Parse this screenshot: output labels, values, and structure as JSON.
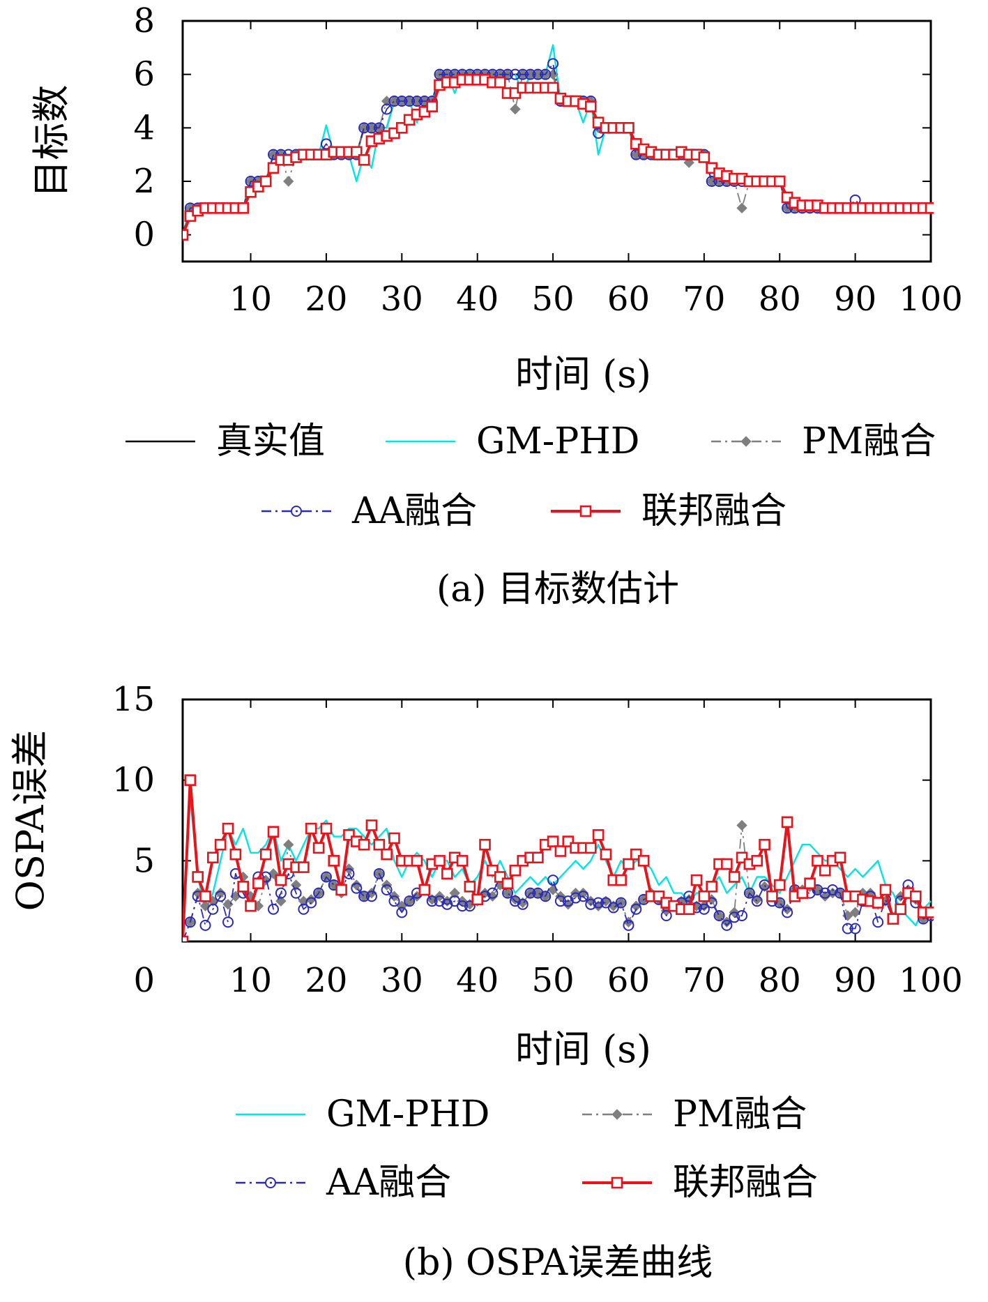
{
  "colors": {
    "true_value": "#000000",
    "gmphd": "#00e5e5",
    "pm": "#7f7f7f",
    "aa": "#2a2ab8",
    "federated": "#e8141c",
    "frame": "#000000"
  },
  "chart_data": [
    {
      "id": "a",
      "type": "line",
      "caption": "(a) 目标数估计",
      "xlabel": "时间 (s)",
      "ylabel": "目标数",
      "xlim": [
        1,
        100
      ],
      "ylim": [
        -1,
        8
      ],
      "xticks": [
        10,
        20,
        30,
        40,
        50,
        60,
        70,
        80,
        90,
        100
      ],
      "yticks": [
        0,
        2,
        4,
        6,
        8
      ],
      "grid": false,
      "legend": {
        "placement": "below",
        "entries": [
          "真实值",
          "GM-PHD",
          "PM融合",
          "AA融合",
          "联邦融合"
        ]
      },
      "x": [
        1,
        2,
        3,
        4,
        5,
        6,
        7,
        8,
        9,
        10,
        11,
        12,
        13,
        14,
        15,
        16,
        17,
        18,
        19,
        20,
        21,
        22,
        23,
        24,
        25,
        26,
        27,
        28,
        29,
        30,
        31,
        32,
        33,
        34,
        35,
        36,
        37,
        38,
        39,
        40,
        41,
        42,
        43,
        44,
        45,
        46,
        47,
        48,
        49,
        50,
        51,
        52,
        53,
        54,
        55,
        56,
        57,
        58,
        59,
        60,
        61,
        62,
        63,
        64,
        65,
        66,
        67,
        68,
        69,
        70,
        71,
        72,
        73,
        74,
        75,
        76,
        77,
        78,
        79,
        80,
        81,
        82,
        83,
        84,
        85,
        86,
        87,
        88,
        89,
        90,
        91,
        92,
        93,
        94,
        95,
        96,
        97,
        98,
        99,
        100
      ],
      "series": [
        {
          "name": "真实值",
          "style": "solid",
          "marker": "none",
          "values": [
            0,
            1,
            1,
            1,
            1,
            1,
            1,
            1,
            1,
            2,
            2,
            2,
            3,
            3,
            3,
            3,
            3,
            3,
            3,
            3,
            3,
            3,
            3,
            3,
            4,
            4,
            4,
            4,
            5,
            5,
            5,
            5,
            5,
            5,
            6,
            6,
            6,
            6,
            6,
            6,
            6,
            6,
            6,
            6,
            6,
            6,
            6,
            6,
            6,
            6,
            5,
            5,
            5,
            5,
            5,
            4,
            4,
            4,
            4,
            4,
            3,
            3,
            3,
            3,
            3,
            3,
            3,
            3,
            3,
            3,
            2,
            2,
            2,
            2,
            2,
            2,
            2,
            2,
            2,
            2,
            1,
            1,
            1,
            1,
            1,
            1,
            1,
            1,
            1,
            1,
            1,
            1,
            1,
            1,
            1,
            1,
            1,
            1,
            1,
            1
          ]
        },
        {
          "name": "GM-PHD",
          "style": "solid",
          "marker": "none",
          "values": [
            0,
            1,
            1,
            1,
            1,
            1,
            1,
            1,
            1,
            2,
            2,
            2,
            3,
            3,
            3,
            3,
            3,
            3,
            3,
            4.1,
            3,
            3,
            3,
            2,
            3,
            2.5,
            4,
            4,
            5,
            5,
            5,
            4.2,
            5,
            5,
            6,
            6,
            5.3,
            6,
            6,
            6,
            6,
            6,
            6,
            6,
            6,
            5.3,
            6,
            6,
            6,
            7.1,
            5,
            5,
            5,
            4.2,
            5,
            3,
            4,
            4,
            4,
            4,
            3,
            3,
            3,
            3,
            3,
            3,
            3,
            3,
            3,
            3,
            2,
            2,
            2,
            2,
            2,
            2,
            2,
            2,
            2,
            2,
            1,
            1,
            1,
            1,
            1,
            1,
            1,
            1,
            1,
            1,
            1,
            1,
            1,
            1,
            1,
            1,
            1,
            1,
            1,
            1
          ]
        },
        {
          "name": "PM融合",
          "style": "dashdot",
          "marker": "diamond",
          "values": [
            0,
            1,
            1,
            1,
            1,
            1,
            1,
            1,
            1,
            2,
            2,
            2,
            3,
            3,
            2,
            3,
            3,
            3,
            3,
            3,
            3,
            3,
            3,
            3,
            4,
            4,
            4,
            5,
            5,
            5,
            5,
            5,
            5,
            5,
            6,
            6,
            6,
            6,
            6,
            6,
            6,
            6,
            6,
            6,
            4.7,
            6,
            6,
            6,
            6,
            6,
            5,
            5,
            5,
            5,
            5,
            4,
            4,
            4,
            4,
            4,
            3,
            3,
            3,
            3,
            3,
            3,
            3,
            2.7,
            3,
            3,
            2,
            2,
            2,
            2,
            1,
            2,
            2,
            2,
            2,
            2,
            1,
            1,
            1,
            1,
            1,
            1,
            1,
            1,
            1,
            1,
            1,
            1,
            1,
            1,
            1,
            1,
            1,
            1,
            1,
            1
          ]
        },
        {
          "name": "AA融合",
          "style": "dashdot",
          "marker": "circle",
          "values": [
            0,
            1,
            1,
            1,
            1,
            1,
            1,
            1,
            1,
            2,
            2,
            2,
            3,
            3,
            3,
            3,
            3,
            3,
            3,
            3.4,
            3,
            3,
            3,
            3,
            4,
            4,
            4,
            4.7,
            5,
            5,
            5,
            5,
            5,
            5,
            6,
            6,
            6,
            6,
            6,
            6,
            6,
            6,
            6,
            6,
            6,
            6,
            6,
            6,
            6,
            6.4,
            5,
            5,
            5,
            5,
            5,
            3.8,
            4,
            4,
            4,
            4,
            3,
            3,
            3,
            3,
            3,
            3,
            3,
            3,
            3,
            3,
            2,
            2,
            2,
            2,
            2,
            2,
            2,
            2,
            2,
            2,
            1,
            1,
            1,
            1,
            1,
            1,
            1,
            1,
            1,
            1.3,
            1,
            1,
            1,
            1,
            1,
            1,
            1,
            1,
            1,
            1
          ]
        },
        {
          "name": "联邦融合",
          "style": "solid",
          "marker": "square",
          "values": [
            0,
            0.7,
            0.9,
            1,
            1,
            1,
            1,
            1,
            1,
            1.6,
            1.8,
            2,
            2.5,
            2.8,
            2.8,
            2.9,
            3,
            3,
            3,
            3,
            3.1,
            3.1,
            3.1,
            3.1,
            2.8,
            3.5,
            3.6,
            3.7,
            3.8,
            4,
            4.3,
            4.5,
            4.6,
            4.8,
            5.6,
            5.7,
            5.7,
            5.8,
            5.8,
            5.8,
            5.8,
            5.7,
            5.7,
            5.3,
            5.3,
            5.5,
            5.5,
            5.5,
            5.5,
            5.5,
            5.1,
            5,
            5,
            4.9,
            4.8,
            4.2,
            4,
            4,
            4,
            4,
            3.4,
            3.2,
            3.1,
            3,
            3,
            3,
            3.1,
            3,
            3,
            2.9,
            2.5,
            2.3,
            2.2,
            2.1,
            2.1,
            2,
            2,
            2,
            2,
            2,
            1.4,
            1.2,
            1.1,
            1.1,
            1.1,
            1,
            1,
            1,
            1,
            1,
            1,
            1,
            1,
            1,
            1,
            1,
            1,
            1,
            1,
            1
          ]
        }
      ]
    },
    {
      "id": "b",
      "type": "line",
      "caption": "(b) OSPA误差曲线",
      "xlabel": "时间 (s)",
      "ylabel": "OSPA误差",
      "xlim": [
        1,
        100
      ],
      "ylim": [
        0,
        15
      ],
      "xticks": [
        10,
        20,
        30,
        40,
        50,
        60,
        70,
        80,
        90,
        100
      ],
      "yticks": [
        0,
        5,
        10,
        15
      ],
      "grid": false,
      "legend": {
        "placement": "below",
        "entries": [
          "GM-PHD",
          "PM融合",
          "AA融合",
          "联邦融合"
        ]
      },
      "x": [
        1,
        2,
        3,
        4,
        5,
        6,
        7,
        8,
        9,
        10,
        11,
        12,
        13,
        14,
        15,
        16,
        17,
        18,
        19,
        20,
        21,
        22,
        23,
        24,
        25,
        26,
        27,
        28,
        29,
        30,
        31,
        32,
        33,
        34,
        35,
        36,
        37,
        38,
        39,
        40,
        41,
        42,
        43,
        44,
        45,
        46,
        47,
        48,
        49,
        50,
        51,
        52,
        53,
        54,
        55,
        56,
        57,
        58,
        59,
        60,
        61,
        62,
        63,
        64,
        65,
        66,
        67,
        68,
        69,
        70,
        71,
        72,
        73,
        74,
        75,
        76,
        77,
        78,
        79,
        80,
        81,
        82,
        83,
        84,
        85,
        86,
        87,
        88,
        89,
        90,
        91,
        92,
        93,
        94,
        95,
        96,
        97,
        98,
        99,
        100
      ],
      "series": [
        {
          "name": "GM-PHD",
          "style": "solid",
          "marker": "none",
          "values": [
            0,
            9,
            4,
            2,
            3,
            5,
            7,
            6,
            7,
            5.5,
            5.5,
            6,
            7,
            5,
            6,
            5,
            6,
            7,
            7,
            7.5,
            6.5,
            6.5,
            7,
            7,
            6.5,
            6,
            6.5,
            7,
            5,
            4,
            5,
            5.5,
            5,
            4,
            5,
            5,
            4,
            4.5,
            3.5,
            4,
            5,
            4,
            5,
            4,
            3,
            3.5,
            4,
            3.5,
            4,
            3.5,
            4,
            4.5,
            5,
            4.5,
            5,
            6,
            5,
            4,
            5,
            4.5,
            5,
            5,
            4.5,
            3.5,
            4,
            3,
            3,
            2.5,
            3,
            3,
            3.5,
            4,
            3,
            3.5,
            4,
            3,
            4,
            4,
            3.5,
            3,
            4,
            5,
            6,
            6,
            5.5,
            5,
            5,
            4.5,
            4,
            4.5,
            4,
            4.5,
            5,
            3.5,
            3,
            2,
            1.5,
            1,
            2,
            2.5
          ]
        },
        {
          "name": "PM融合",
          "style": "dashdot",
          "marker": "diamond",
          "values": [
            0,
            1.2,
            3,
            2.2,
            2.5,
            3,
            2.3,
            2.8,
            4,
            2.8,
            2.2,
            3.8,
            4.2,
            2.5,
            6,
            3.5,
            2.5,
            2.6,
            3,
            4,
            3.5,
            3,
            4.5,
            3.5,
            2.8,
            3,
            4.2,
            3.5,
            2.8,
            2.2,
            2.5,
            2.8,
            3.2,
            2.6,
            2.8,
            2.5,
            3,
            2.5,
            2.3,
            2.5,
            3,
            2.8,
            3.5,
            3,
            2.6,
            2.4,
            3,
            3,
            2.8,
            3.2,
            2.8,
            2.3,
            3,
            3,
            2.5,
            2.2,
            2.5,
            2.2,
            2.4,
            1.2,
            2.2,
            2.6,
            3,
            2.6,
            1.9,
            2.2,
            2.5,
            2.6,
            2.2,
            2.2,
            2.6,
            1.6,
            1.2,
            1.8,
            7.2,
            3,
            2.6,
            3.4,
            2.8,
            2.4,
            2,
            3.2,
            3.2,
            3.4,
            3.2,
            2.8,
            3,
            3,
            1.6,
            1.8,
            3,
            3,
            2.3,
            2.5,
            1.5,
            2.8,
            3.2,
            2.6,
            1.4,
            1.7
          ]
        },
        {
          "name": "AA融合",
          "style": "dashdot",
          "marker": "circle",
          "values": [
            0,
            1.2,
            2.8,
            1,
            2,
            2.8,
            1.2,
            4.2,
            3,
            2.2,
            4,
            4,
            2,
            3,
            4.2,
            3,
            2,
            2.4,
            3,
            4,
            3.5,
            3.2,
            4.2,
            3.3,
            2.8,
            2.8,
            4.2,
            3.2,
            2.5,
            1.8,
            2.5,
            3,
            3.2,
            2.5,
            2.5,
            2.3,
            2.5,
            2.2,
            2.2,
            2.6,
            2.8,
            3,
            4,
            3,
            2.5,
            2.3,
            3,
            3,
            2.8,
            3.8,
            2.5,
            2.5,
            2.7,
            2.8,
            2.3,
            2.4,
            2.4,
            2.1,
            2.4,
            1,
            2,
            2.6,
            2.8,
            2.6,
            1.6,
            2.2,
            2.4,
            2.8,
            2.1,
            2,
            2.4,
            1.6,
            1,
            1.5,
            1.6,
            3,
            2.5,
            3.5,
            2.5,
            2.4,
            1.8,
            3.2,
            3,
            3,
            3.2,
            3,
            3.2,
            3,
            0.8,
            0.8,
            2.5,
            2.8,
            1.2,
            2.6,
            1.4,
            2.5,
            3.5,
            2.4,
            1.4,
            1.6
          ]
        },
        {
          "name": "联邦融合",
          "style": "solid",
          "marker": "square",
          "values": [
            0,
            10,
            4,
            2.8,
            5.2,
            6,
            7,
            5.4,
            3.4,
            2.2,
            3.6,
            5.4,
            6.8,
            3.8,
            4.8,
            4.6,
            4.6,
            7,
            5.8,
            7,
            5,
            3.2,
            6.6,
            6.2,
            6,
            7.2,
            6,
            5.4,
            6.4,
            5,
            5,
            5,
            3.2,
            4.8,
            5,
            4.2,
            5.2,
            5,
            3.4,
            2.6,
            6,
            4.4,
            4,
            3.6,
            4.4,
            5,
            5.2,
            5.2,
            6,
            6.2,
            5.6,
            6.2,
            5.8,
            5.8,
            5.8,
            6.6,
            5.4,
            3.8,
            3.8,
            4.8,
            5.4,
            5,
            2.8,
            2.8,
            2.4,
            2.2,
            2,
            2,
            3.8,
            2.8,
            3.4,
            4.8,
            4.8,
            4,
            5.2,
            4.8,
            5,
            6,
            2.8,
            3.5,
            7.4,
            2.8,
            3,
            3.6,
            5,
            4.4,
            5,
            5.2,
            2.8,
            2.8,
            2.6,
            2.5,
            2.4,
            3.2,
            1.4,
            2,
            3,
            2.8,
            1.8,
            1.8
          ]
        }
      ]
    }
  ]
}
